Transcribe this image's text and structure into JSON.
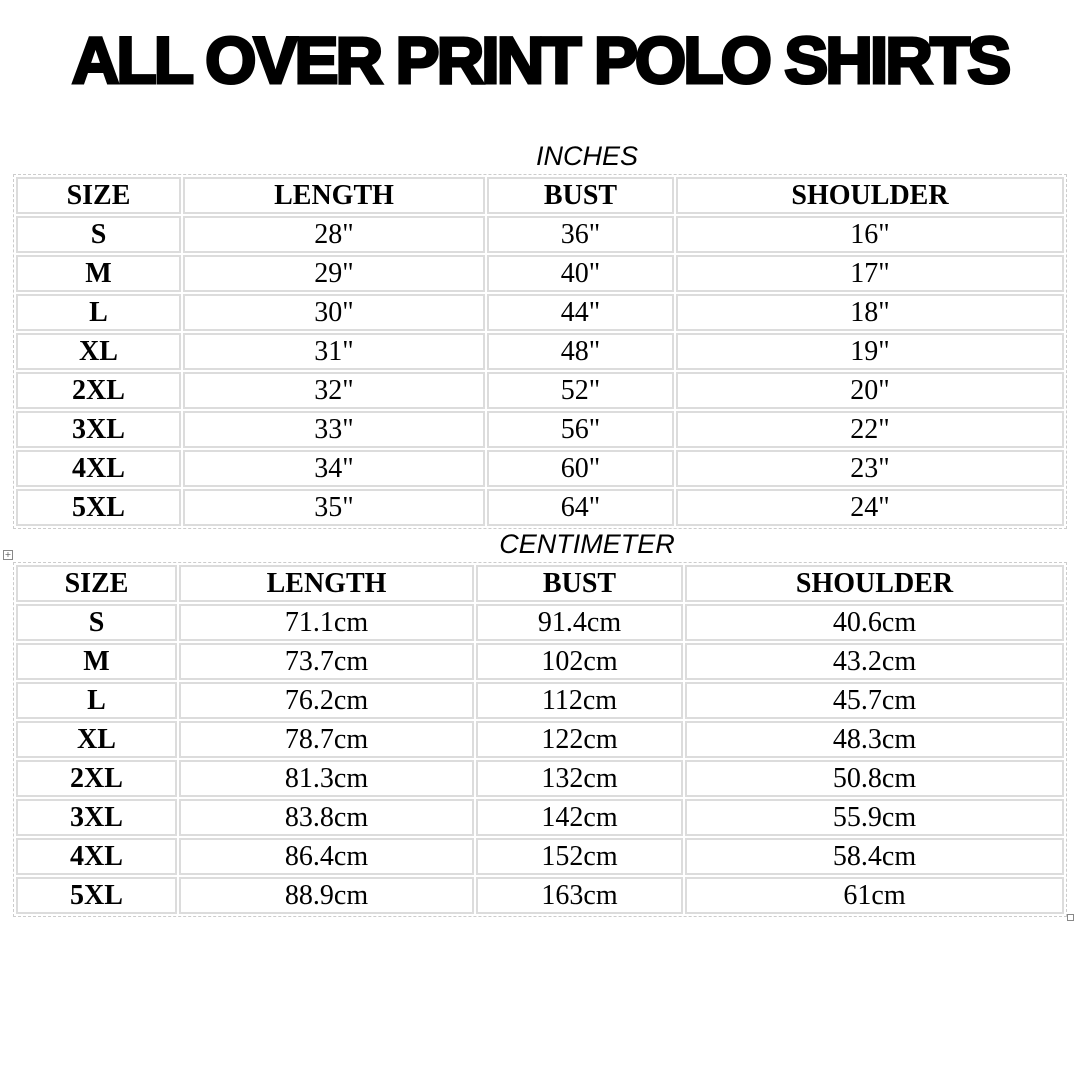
{
  "title": "ALL OVER PRINT POLO SHIRTS",
  "inches": {
    "label": "INCHES",
    "headers": [
      "SIZE",
      "LENGTH",
      "BUST",
      "SHOULDER"
    ],
    "rows": [
      [
        "S",
        "28\"",
        "36\"",
        "16\""
      ],
      [
        "M",
        "29\"",
        "40\"",
        "17\""
      ],
      [
        "L",
        "30\"",
        "44\"",
        "18\""
      ],
      [
        "XL",
        "31\"",
        "48\"",
        "19\""
      ],
      [
        "2XL",
        "32\"",
        "52\"",
        "20\""
      ],
      [
        "3XL",
        "33\"",
        "56\"",
        "22\""
      ],
      [
        "4XL",
        "34\"",
        "60\"",
        "23\""
      ],
      [
        "5XL",
        "35\"",
        "64\"",
        "24\""
      ]
    ]
  },
  "centimeter": {
    "label": "CENTIMETER",
    "headers": [
      "SIZE",
      "LENGTH",
      "BUST",
      "SHOULDER"
    ],
    "rows": [
      [
        "S",
        "71.1cm",
        "91.4cm",
        "40.6cm"
      ],
      [
        "M",
        "73.7cm",
        "102cm",
        "43.2cm"
      ],
      [
        "L",
        "76.2cm",
        "112cm",
        "45.7cm"
      ],
      [
        "XL",
        "78.7cm",
        "122cm",
        "48.3cm"
      ],
      [
        "2XL",
        "81.3cm",
        "132cm",
        "50.8cm"
      ],
      [
        "3XL",
        "83.8cm",
        "142cm",
        "55.9cm"
      ],
      [
        "4XL",
        "86.4cm",
        "152cm",
        "58.4cm"
      ],
      [
        "5XL",
        "88.9cm",
        "163cm",
        "61cm"
      ]
    ]
  }
}
